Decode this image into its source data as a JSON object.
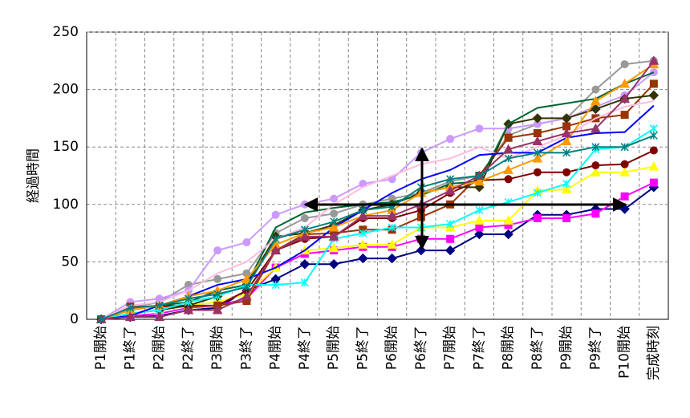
{
  "chart_data": {
    "type": "line",
    "y_label": "経過時間",
    "categories": [
      "P1開始",
      "P1終了",
      "P2開始",
      "P2終了",
      "P3開始",
      "P3終了",
      "P4開始",
      "P4終了",
      "P5開始",
      "P5終了",
      "P6開始",
      "P6終了",
      "P7開始",
      "P7終了",
      "P8開始",
      "P8終了",
      "P9開始",
      "P9終了",
      "P10開始",
      "完成時刻"
    ],
    "ylim": [
      0,
      250
    ],
    "yticks": [
      0,
      50,
      100,
      150,
      200,
      250
    ],
    "grid": true,
    "series": [
      {
        "color": "#000080",
        "marker": "diamond",
        "values": [
          0,
          2,
          3,
          8,
          10,
          25,
          35,
          48,
          48,
          53,
          53,
          60,
          60,
          74,
          74,
          91,
          91,
          96,
          96,
          115
        ]
      },
      {
        "color": "#ff00ff",
        "marker": "square",
        "values": [
          0,
          3,
          5,
          10,
          12,
          18,
          45,
          57,
          60,
          63,
          63,
          70,
          70,
          80,
          82,
          88,
          88,
          92,
          107,
          119
        ]
      },
      {
        "color": "#ffff00",
        "marker": "triangle",
        "values": [
          0,
          5,
          8,
          12,
          15,
          22,
          45,
          60,
          62,
          65,
          65,
          80,
          80,
          86,
          86,
          112,
          113,
          128,
          128,
          133
        ]
      },
      {
        "color": "#800000",
        "marker": "circle",
        "values": [
          0,
          10,
          12,
          12,
          12,
          25,
          60,
          70,
          72,
          88,
          88,
          95,
          110,
          121,
          122,
          128,
          128,
          134,
          135,
          147
        ]
      },
      {
        "color": "#999999",
        "marker": "circle",
        "values": [
          0,
          10,
          15,
          30,
          35,
          40,
          75,
          88,
          92,
          100,
          105,
          110,
          120,
          125,
          160,
          170,
          175,
          200,
          222,
          225
        ]
      },
      {
        "color": "#cc99ff",
        "marker": "circle",
        "values": [
          0,
          15,
          18,
          25,
          60,
          67,
          91,
          100,
          105,
          118,
          122,
          145,
          157,
          166,
          166,
          170,
          175,
          185,
          195,
          215
        ]
      },
      {
        "color": "#993300",
        "marker": "square",
        "values": [
          0,
          11,
          11,
          11,
          12,
          16,
          60,
          74,
          75,
          78,
          78,
          89,
          100,
          125,
          158,
          162,
          168,
          175,
          178,
          205
        ]
      },
      {
        "color": "#333300",
        "marker": "diamond",
        "values": [
          0,
          5,
          8,
          12,
          20,
          30,
          72,
          75,
          82,
          95,
          100,
          110,
          115,
          115,
          170,
          175,
          175,
          183,
          192,
          195
        ]
      },
      {
        "color": "#006633",
        "marker": "none",
        "values": [
          0,
          8,
          12,
          15,
          25,
          30,
          80,
          93,
          97,
          100,
          102,
          108,
          118,
          120,
          170,
          184,
          188,
          192,
          205,
          215
        ]
      },
      {
        "color": "#00ffff",
        "marker": "star",
        "values": [
          0,
          5,
          8,
          15,
          20,
          30,
          30,
          32,
          70,
          75,
          80,
          80,
          83,
          95,
          102,
          110,
          118,
          148,
          150,
          166
        ]
      },
      {
        "color": "#ffbbdd",
        "marker": "none",
        "values": [
          0,
          12,
          15,
          25,
          40,
          50,
          70,
          80,
          100,
          115,
          125,
          135,
          140,
          150,
          140,
          150,
          160,
          175,
          185,
          190
        ]
      },
      {
        "color": "#0000ff",
        "marker": "none",
        "values": [
          0,
          3,
          12,
          20,
          30,
          35,
          45,
          60,
          80,
          95,
          110,
          122,
          130,
          143,
          145,
          145,
          158,
          162,
          163,
          186
        ]
      },
      {
        "color": "#ff9900",
        "marker": "triangle",
        "values": [
          0,
          8,
          12,
          20,
          25,
          35,
          65,
          75,
          80,
          90,
          95,
          110,
          115,
          120,
          130,
          140,
          155,
          190,
          205,
          222
        ]
      },
      {
        "color": "#993366",
        "marker": "triangle",
        "values": [
          0,
          2,
          2,
          8,
          8,
          20,
          60,
          72,
          72,
          90,
          90,
          100,
          112,
          125,
          148,
          155,
          162,
          166,
          192,
          225
        ]
      },
      {
        "color": "#008080",
        "marker": "star",
        "values": [
          0,
          10,
          12,
          18,
          22,
          28,
          70,
          78,
          85,
          95,
          98,
          115,
          122,
          125,
          140,
          145,
          145,
          150,
          150,
          160
        ]
      }
    ]
  }
}
